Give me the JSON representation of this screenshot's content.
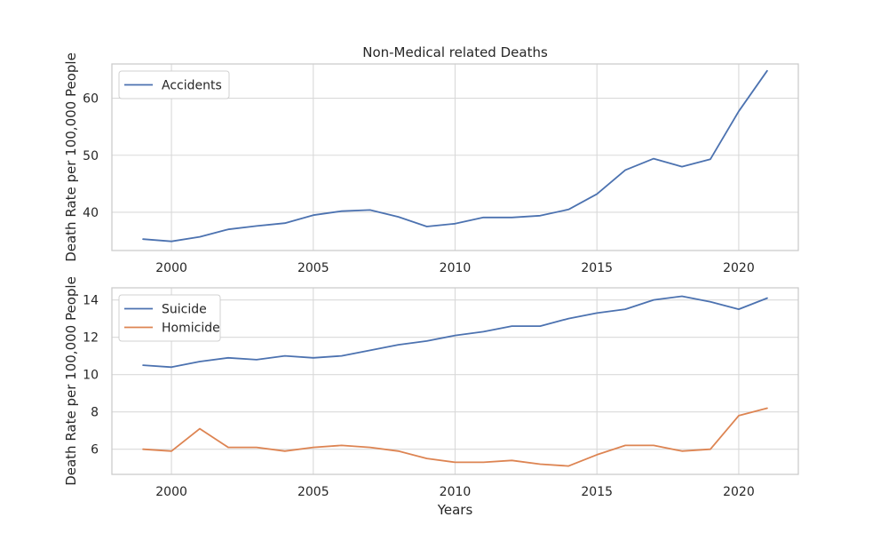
{
  "figure": {
    "shared_xlabel": "Years"
  },
  "chart_data": [
    {
      "type": "line",
      "title": "Non-Medical related Deaths",
      "xlabel": "",
      "ylabel": "Death Rate per 100,000 People",
      "x": [
        1999,
        2000,
        2001,
        2002,
        2003,
        2004,
        2005,
        2006,
        2007,
        2008,
        2009,
        2010,
        2011,
        2012,
        2013,
        2014,
        2015,
        2016,
        2017,
        2018,
        2019,
        2020,
        2021
      ],
      "xlim": [
        1997.9,
        2022.1
      ],
      "ylim": [
        33.3,
        66.0
      ],
      "xticks": [
        2000,
        2005,
        2010,
        2015,
        2020
      ],
      "yticks": [
        40,
        50,
        60
      ],
      "grid": true,
      "legend_position": "top-left",
      "series": [
        {
          "name": "Accidents",
          "color": "#4c72b0",
          "values": [
            35.3,
            34.9,
            35.7,
            37.0,
            37.6,
            38.1,
            39.5,
            40.2,
            40.4,
            39.2,
            37.5,
            38.0,
            39.1,
            39.1,
            39.4,
            40.5,
            43.2,
            47.4,
            49.4,
            48.0,
            49.3,
            57.7,
            64.8
          ]
        }
      ]
    },
    {
      "type": "line",
      "title": "",
      "xlabel": "Years",
      "ylabel": "Death Rate per 100,000 People",
      "x": [
        1999,
        2000,
        2001,
        2002,
        2003,
        2004,
        2005,
        2006,
        2007,
        2008,
        2009,
        2010,
        2011,
        2012,
        2013,
        2014,
        2015,
        2016,
        2017,
        2018,
        2019,
        2020,
        2021
      ],
      "xlim": [
        1997.9,
        2022.1
      ],
      "ylim": [
        4.65,
        14.65
      ],
      "xticks": [
        2000,
        2005,
        2010,
        2015,
        2020
      ],
      "yticks": [
        6,
        8,
        10,
        12,
        14
      ],
      "grid": true,
      "legend_position": "top-left",
      "series": [
        {
          "name": "Suicide",
          "color": "#4c72b0",
          "values": [
            10.5,
            10.4,
            10.7,
            10.9,
            10.8,
            11.0,
            10.9,
            11.0,
            11.3,
            11.6,
            11.8,
            12.1,
            12.3,
            12.6,
            12.6,
            13.0,
            13.3,
            13.5,
            14.0,
            14.2,
            13.9,
            13.5,
            14.1
          ]
        },
        {
          "name": "Homicide",
          "color": "#dd8452",
          "values": [
            6.0,
            5.9,
            7.1,
            6.1,
            6.1,
            5.9,
            6.1,
            6.2,
            6.1,
            5.9,
            5.5,
            5.3,
            5.3,
            5.4,
            5.2,
            5.1,
            5.7,
            6.2,
            6.2,
            5.9,
            6.0,
            7.8,
            8.2
          ]
        }
      ]
    }
  ]
}
